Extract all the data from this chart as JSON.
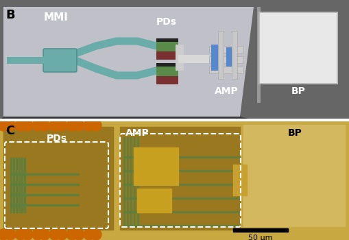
{
  "panel_B_label": "B",
  "panel_C_label": "C",
  "label_MMI": "MMI",
  "label_PDs": "PDs",
  "label_AMP": "AMP",
  "label_BP": "BP",
  "scale_bar_label": "50 μm",
  "bg_top_outer": "#555555",
  "bg_top_chip": "#c8c8c8",
  "bg_bottom": "#b5852a",
  "teal_waveguide": "#6aacaa",
  "pd_green": "#5a8a4a",
  "pd_darkred": "#7a3030",
  "pd_black": "#222222",
  "amp_blue": "#5588cc",
  "amp_white": "#dddddd",
  "white_connector": "#d8d8d8",
  "bp_white": "#e0e0e0",
  "chip_bottom_dark": "#3a3a3a",
  "panel_B_bg_outer": "#666666",
  "panel_B_chip_color": "#c0c0c8",
  "green_circuit": "#5a8040",
  "circuit_bg": "#c8a840"
}
